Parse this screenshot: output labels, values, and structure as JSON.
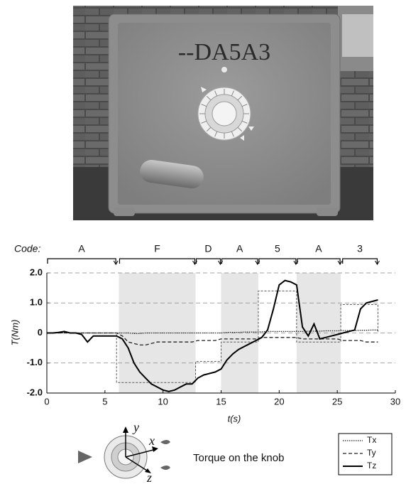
{
  "scene": {
    "display": "--DA5A3"
  },
  "chart_data": {
    "type": "line",
    "code_label": "Code:",
    "segments": [
      {
        "label": "A",
        "start": 0,
        "end": 6,
        "shaded": false
      },
      {
        "label": "F",
        "start": 6.2,
        "end": 12.8,
        "shaded": true
      },
      {
        "label": "D",
        "start": 12.8,
        "end": 15,
        "shaded": false
      },
      {
        "label": "A",
        "start": 15,
        "end": 18.2,
        "shaded": true
      },
      {
        "label": "5",
        "start": 18.2,
        "end": 21.5,
        "shaded": false
      },
      {
        "label": "A",
        "start": 21.5,
        "end": 25.3,
        "shaded": true
      },
      {
        "label": "3",
        "start": 25.4,
        "end": 28.5,
        "shaded": false
      }
    ],
    "x_label": "t(s)",
    "y_label": "T(Nm)",
    "xlim": [
      0,
      30
    ],
    "xticks": [
      0,
      5,
      10,
      15,
      20,
      25,
      30
    ],
    "ylim": [
      -2,
      2
    ],
    "yticks": [
      {
        "value": 2,
        "label": "2.0"
      },
      {
        "value": 1,
        "label": "1.0"
      },
      0,
      {
        "value": -1,
        "label": "-1.0"
      },
      {
        "value": -2,
        "label": "-2.0"
      }
    ],
    "grid": true,
    "x": [
      0,
      0.5,
      1,
      1.5,
      2,
      2.5,
      3,
      3.5,
      4,
      4.5,
      5,
      5.5,
      6,
      6.5,
      7,
      7.5,
      8,
      8.5,
      9,
      9.5,
      10,
      10.5,
      11,
      11.5,
      12,
      12.5,
      13,
      13.5,
      14,
      14.5,
      15,
      15.5,
      16,
      16.5,
      17,
      17.5,
      18,
      18.5,
      19,
      19.5,
      20,
      20.5,
      21,
      21.5,
      22,
      22.5,
      23,
      23.5,
      24,
      24.5,
      25,
      25.5,
      26,
      26.5,
      27,
      27.5,
      28,
      28.5
    ],
    "series": [
      {
        "name": "Tx",
        "color": "#222222",
        "dash": "dotted",
        "values": [
          0,
          0,
          0,
          0.02,
          0,
          0,
          0,
          0,
          0,
          0,
          0,
          0,
          0,
          0,
          0,
          -0.02,
          -0.02,
          0,
          0,
          0,
          0,
          0,
          0,
          0,
          0,
          0,
          0,
          0,
          0,
          0,
          0,
          0.02,
          0.02,
          0.02,
          0.03,
          0.03,
          0.03,
          0.04,
          0.05,
          0.05,
          0.05,
          0.05,
          0.05,
          0.05,
          0.05,
          0.06,
          0.06,
          0.06,
          0.07,
          0.07,
          0.07,
          0.08,
          0.08,
          0.08,
          0.09,
          0.09,
          0.1,
          0.1
        ]
      },
      {
        "name": "Ty",
        "color": "#222222",
        "dash": "dashed",
        "values": [
          0,
          0,
          0,
          0,
          0,
          0,
          0,
          0,
          0,
          0,
          0,
          0,
          0,
          -0.1,
          -0.3,
          -0.35,
          -0.4,
          -0.4,
          -0.35,
          -0.3,
          -0.3,
          -0.3,
          -0.3,
          -0.3,
          -0.3,
          -0.3,
          -0.25,
          -0.25,
          -0.25,
          -0.25,
          -0.2,
          -0.2,
          -0.2,
          -0.2,
          -0.2,
          -0.2,
          -0.2,
          -0.15,
          -0.15,
          -0.15,
          -0.15,
          -0.15,
          -0.15,
          -0.15,
          -0.2,
          -0.2,
          -0.2,
          -0.2,
          -0.2,
          -0.2,
          -0.2,
          -0.25,
          -0.25,
          -0.25,
          -0.25,
          -0.3,
          -0.3,
          -0.3
        ]
      },
      {
        "name": "Tz",
        "color": "#000000",
        "dash": "solid",
        "values": [
          0,
          0,
          0.02,
          0.05,
          0,
          0,
          -0.05,
          -0.3,
          -0.1,
          -0.1,
          -0.1,
          -0.1,
          -0.1,
          -0.2,
          -0.5,
          -1.0,
          -1.3,
          -1.5,
          -1.7,
          -1.8,
          -1.9,
          -1.95,
          -1.9,
          -1.8,
          -1.7,
          -1.7,
          -1.5,
          -1.4,
          -1.35,
          -1.3,
          -1.2,
          -0.9,
          -0.7,
          -0.55,
          -0.45,
          -0.35,
          -0.25,
          -0.15,
          0.1,
          0.8,
          1.6,
          1.75,
          1.7,
          1.6,
          0.2,
          -0.1,
          0.3,
          -0.2,
          -0.15,
          -0.1,
          -0.05,
          0,
          0.05,
          0.1,
          0.8,
          1.0,
          1.05,
          1.1
        ]
      }
    ],
    "reference": {
      "color": "#555555",
      "x": [
        0,
        6,
        6,
        12.8,
        12.8,
        15,
        15,
        18.2,
        18.2,
        21.5,
        21.5,
        25.3,
        25.3,
        28.5,
        28.5
      ],
      "values": [
        0,
        0,
        -1.65,
        -1.65,
        -0.95,
        -0.95,
        -0.3,
        -0.3,
        1.4,
        1.4,
        -0.3,
        -0.3,
        0.95,
        0.95,
        0
      ]
    }
  },
  "diagram": {
    "axes": [
      "y",
      "x",
      "z"
    ],
    "caption": "Torque on the knob"
  }
}
